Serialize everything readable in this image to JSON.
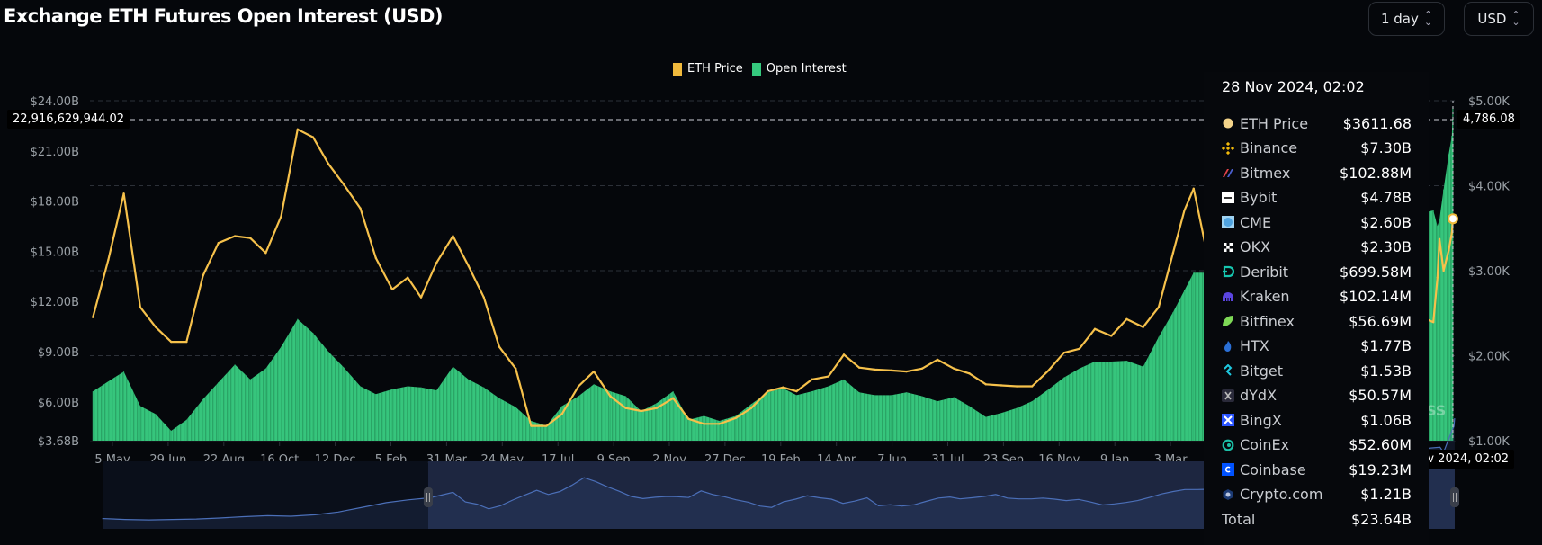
{
  "header": {
    "title": "Exchange ETH Futures Open Interest (USD)",
    "interval_select": "1 day",
    "currency_select": "USD"
  },
  "legend": [
    {
      "label": "ETH Price",
      "color": "#f0b93c"
    },
    {
      "label": "Open Interest",
      "color": "#35c97e"
    }
  ],
  "crosshair": {
    "left_value": "22,916,629,944.02",
    "right_value": "4,786.08",
    "date_label": "28 Nov 2024, 02:02"
  },
  "watermark": "SS",
  "tooltip": {
    "date": "28 Nov 2024, 02:02",
    "rows": [
      {
        "name": "ETH Price",
        "value": "$3611.68",
        "icon": "eth-price-dot-icon",
        "color": "#f3d48a"
      },
      {
        "name": "Binance",
        "value": "$7.30B",
        "icon": "binance-icon",
        "color": "#f0b90b"
      },
      {
        "name": "Bitmex",
        "value": "$102.88M",
        "icon": "bitmex-icon",
        "color": "#e2434a"
      },
      {
        "name": "Bybit",
        "value": "$4.78B",
        "icon": "bybit-icon",
        "color": "#ffffff"
      },
      {
        "name": "CME",
        "value": "$2.60B",
        "icon": "cme-icon",
        "color": "#4fa3e0"
      },
      {
        "name": "OKX",
        "value": "$2.30B",
        "icon": "okx-icon",
        "color": "#ffffff"
      },
      {
        "name": "Deribit",
        "value": "$699.58M",
        "icon": "deribit-icon",
        "color": "#16c6b0"
      },
      {
        "name": "Kraken",
        "value": "$102.14M",
        "icon": "kraken-icon",
        "color": "#5b45e0"
      },
      {
        "name": "Bitfinex",
        "value": "$56.69M",
        "icon": "bitfinex-icon",
        "color": "#7ed957"
      },
      {
        "name": "HTX",
        "value": "$1.77B",
        "icon": "htx-icon",
        "color": "#2a6fd6"
      },
      {
        "name": "Bitget",
        "value": "$1.53B",
        "icon": "bitget-icon",
        "color": "#1ec8e0"
      },
      {
        "name": "dYdX",
        "value": "$50.57M",
        "icon": "dydx-icon",
        "color": "#2a2a3a"
      },
      {
        "name": "BingX",
        "value": "$1.06B",
        "icon": "bingx-icon",
        "color": "#2a54ff"
      },
      {
        "name": "CoinEx",
        "value": "$52.60M",
        "icon": "coinex-icon",
        "color": "#1cc0a8"
      },
      {
        "name": "Coinbase",
        "value": "$19.23M",
        "icon": "coinbase-icon",
        "color": "#0052ff"
      },
      {
        "name": "Crypto.com",
        "value": "$1.21B",
        "icon": "cryptocom-icon",
        "color": "#1b3a74"
      },
      {
        "name": "Total",
        "value": "$23.64B",
        "icon": "",
        "color": ""
      }
    ]
  },
  "chart_data": {
    "type": "line+area",
    "title": "Exchange ETH Futures Open Interest (USD)",
    "left_axis": {
      "ticks": [
        "$24.00B",
        "$21.00B",
        "$18.00B",
        "$15.00B",
        "$12.00B",
        "$9.00B",
        "$6.00B",
        "$3.68B"
      ],
      "tick_values": [
        24,
        21,
        18,
        15,
        12,
        9,
        6,
        3.68
      ],
      "range": [
        3.68,
        24
      ],
      "unit": "USD billions"
    },
    "right_axis": {
      "ticks": [
        "$5.00K",
        "$4.00K",
        "$3.00K",
        "$2.00K",
        "$1.00K"
      ],
      "tick_values": [
        5000,
        4000,
        3000,
        2000,
        1000
      ],
      "range": [
        1000,
        5000
      ]
    },
    "x_ticks": [
      "5 May",
      "29 Jun",
      "22 Aug",
      "16 Oct",
      "12 Dec",
      "5 Feb",
      "31 Mar",
      "24 May",
      "17 Jul",
      "9 Sep",
      "2 Nov",
      "27 Dec",
      "19 Feb",
      "14 Apr",
      "7 Jun",
      "31 Jul",
      "23 Sep",
      "16 Nov",
      "9 Jan",
      "3 Mar"
    ],
    "grid": "horizontal dashed",
    "legend_position": "top-center",
    "series": [
      {
        "name": "ETH Price",
        "axis": "right",
        "color": "#f6c14b",
        "points": [
          [
            "2021-04-16",
            2453
          ],
          [
            "2021-05-01",
            3128
          ],
          [
            "2021-05-16",
            3907
          ],
          [
            "2021-06-01",
            2570
          ],
          [
            "2021-06-16",
            2337
          ],
          [
            "2021-07-01",
            2163
          ],
          [
            "2021-07-16",
            2163
          ],
          [
            "2021-08-01",
            2942
          ],
          [
            "2021-08-16",
            3326
          ],
          [
            "2021-09-01",
            3407
          ],
          [
            "2021-09-16",
            3384
          ],
          [
            "2021-10-01",
            3209
          ],
          [
            "2021-10-16",
            3640
          ],
          [
            "2021-11-01",
            4663
          ],
          [
            "2021-11-16",
            4570
          ],
          [
            "2021-12-01",
            4256
          ],
          [
            "2021-12-16",
            4012
          ],
          [
            "2022-01-01",
            3733
          ],
          [
            "2022-01-16",
            3151
          ],
          [
            "2022-02-01",
            2779
          ],
          [
            "2022-02-16",
            2919
          ],
          [
            "2022-03-01",
            2686
          ],
          [
            "2022-03-16",
            3093
          ],
          [
            "2022-04-01",
            3407
          ],
          [
            "2022-04-16",
            3058
          ],
          [
            "2022-05-01",
            2686
          ],
          [
            "2022-05-16",
            2105
          ],
          [
            "2022-06-01",
            1849
          ],
          [
            "2022-06-16",
            1174
          ],
          [
            "2022-07-01",
            1174
          ],
          [
            "2022-07-16",
            1314
          ],
          [
            "2022-08-01",
            1640
          ],
          [
            "2022-08-16",
            1814
          ],
          [
            "2022-09-01",
            1523
          ],
          [
            "2022-09-16",
            1384
          ],
          [
            "2022-10-01",
            1349
          ],
          [
            "2022-10-16",
            1384
          ],
          [
            "2022-11-01",
            1500
          ],
          [
            "2022-11-16",
            1256
          ],
          [
            "2022-12-01",
            1198
          ],
          [
            "2022-12-16",
            1198
          ],
          [
            "2023-01-01",
            1267
          ],
          [
            "2023-01-16",
            1384
          ],
          [
            "2023-02-01",
            1581
          ],
          [
            "2023-02-16",
            1628
          ],
          [
            "2023-03-01",
            1581
          ],
          [
            "2023-03-16",
            1721
          ],
          [
            "2023-04-01",
            1756
          ],
          [
            "2023-04-16",
            2012
          ],
          [
            "2023-05-01",
            1860
          ],
          [
            "2023-05-16",
            1837
          ],
          [
            "2023-06-01",
            1826
          ],
          [
            "2023-06-16",
            1814
          ],
          [
            "2023-07-01",
            1849
          ],
          [
            "2023-07-16",
            1953
          ],
          [
            "2023-08-01",
            1849
          ],
          [
            "2023-08-16",
            1791
          ],
          [
            "2023-09-01",
            1663
          ],
          [
            "2023-09-16",
            1651
          ],
          [
            "2023-10-01",
            1640
          ],
          [
            "2023-10-16",
            1640
          ],
          [
            "2023-11-01",
            1826
          ],
          [
            "2023-11-16",
            2035
          ],
          [
            "2023-12-01",
            2081
          ],
          [
            "2023-12-16",
            2314
          ],
          [
            "2024-01-01",
            2233
          ],
          [
            "2024-01-16",
            2430
          ],
          [
            "2024-02-01",
            2337
          ],
          [
            "2024-02-16",
            2570
          ],
          [
            "2024-03-01",
            3209
          ],
          [
            "2024-03-12",
            3709
          ],
          [
            "2024-03-21",
            3965
          ],
          [
            "2024-04-01",
            3326
          ],
          [
            "2024-04-08",
            3477
          ],
          [
            "2024-11-09",
            2395
          ],
          [
            "2024-11-13",
            2919
          ],
          [
            "2024-11-15",
            3372
          ],
          [
            "2024-11-19",
            3000
          ],
          [
            "2024-11-24",
            3240
          ],
          [
            "2024-11-27",
            3442
          ],
          [
            "2024-11-28",
            3611.68
          ]
        ]
      },
      {
        "name": "Open Interest",
        "axis": "left",
        "color": "#35c97e",
        "points": [
          [
            "2021-04-16",
            6.63
          ],
          [
            "2021-05-01",
            7.22
          ],
          [
            "2021-05-16",
            7.81
          ],
          [
            "2021-06-01",
            5.75
          ],
          [
            "2021-06-16",
            5.27
          ],
          [
            "2021-07-01",
            4.27
          ],
          [
            "2021-07-16",
            4.92
          ],
          [
            "2021-08-01",
            6.16
          ],
          [
            "2021-08-16",
            7.17
          ],
          [
            "2021-09-01",
            8.23
          ],
          [
            "2021-09-16",
            7.34
          ],
          [
            "2021-10-01",
            7.99
          ],
          [
            "2021-10-16",
            9.29
          ],
          [
            "2021-11-01",
            10.95
          ],
          [
            "2021-11-16",
            10.12
          ],
          [
            "2021-12-01",
            9.0
          ],
          [
            "2021-12-16",
            8.05
          ],
          [
            "2022-01-01",
            6.93
          ],
          [
            "2022-01-16",
            6.46
          ],
          [
            "2022-02-01",
            6.75
          ],
          [
            "2022-02-16",
            6.93
          ],
          [
            "2022-03-01",
            6.87
          ],
          [
            "2022-03-16",
            6.69
          ],
          [
            "2022-04-01",
            8.11
          ],
          [
            "2022-04-16",
            7.34
          ],
          [
            "2022-05-01",
            6.87
          ],
          [
            "2022-05-16",
            6.22
          ],
          [
            "2022-06-01",
            5.69
          ],
          [
            "2022-06-16",
            4.86
          ],
          [
            "2022-07-01",
            4.57
          ],
          [
            "2022-07-16",
            5.75
          ],
          [
            "2022-08-01",
            6.34
          ],
          [
            "2022-08-16",
            7.05
          ],
          [
            "2022-09-01",
            6.63
          ],
          [
            "2022-09-16",
            6.34
          ],
          [
            "2022-10-01",
            5.45
          ],
          [
            "2022-10-16",
            5.92
          ],
          [
            "2022-11-01",
            6.63
          ],
          [
            "2022-11-16",
            4.92
          ],
          [
            "2022-12-01",
            5.16
          ],
          [
            "2022-12-16",
            4.86
          ],
          [
            "2023-01-01",
            5.16
          ],
          [
            "2023-01-16",
            5.87
          ],
          [
            "2023-02-01",
            6.57
          ],
          [
            "2023-02-16",
            6.81
          ],
          [
            "2023-03-01",
            6.4
          ],
          [
            "2023-03-16",
            6.63
          ],
          [
            "2023-04-01",
            6.93
          ],
          [
            "2023-04-16",
            7.34
          ],
          [
            "2023-05-01",
            6.57
          ],
          [
            "2023-05-16",
            6.4
          ],
          [
            "2023-06-01",
            6.4
          ],
          [
            "2023-06-16",
            6.57
          ],
          [
            "2023-07-01",
            6.34
          ],
          [
            "2023-07-16",
            6.04
          ],
          [
            "2023-08-01",
            6.28
          ],
          [
            "2023-08-16",
            5.75
          ],
          [
            "2023-09-01",
            5.1
          ],
          [
            "2023-09-16",
            5.33
          ],
          [
            "2023-10-01",
            5.63
          ],
          [
            "2023-10-16",
            6.04
          ],
          [
            "2023-11-01",
            6.75
          ],
          [
            "2023-11-16",
            7.46
          ],
          [
            "2023-12-01",
            7.99
          ],
          [
            "2023-12-16",
            8.41
          ],
          [
            "2024-01-01",
            8.41
          ],
          [
            "2024-01-16",
            8.46
          ],
          [
            "2024-02-01",
            8.11
          ],
          [
            "2024-02-16",
            9.88
          ],
          [
            "2024-03-01",
            11.36
          ],
          [
            "2024-03-12",
            12.66
          ],
          [
            "2024-03-21",
            13.72
          ],
          [
            "2024-04-01",
            13.72
          ],
          [
            "2024-04-08",
            14.49
          ],
          [
            "2024-11-09",
            17.44
          ],
          [
            "2024-11-13",
            16.5
          ],
          [
            "2024-11-15",
            16.9
          ],
          [
            "2024-11-19",
            18.7
          ],
          [
            "2024-11-24",
            20.8
          ],
          [
            "2024-11-27",
            21.9
          ],
          [
            "2024-11-28",
            23.64
          ]
        ]
      }
    ],
    "navigator_history": [
      [
        "2020-02-19",
        2.2
      ],
      [
        "2020-03-19",
        2.0
      ],
      [
        "2020-04-19",
        1.9
      ],
      [
        "2020-05-19",
        2.0
      ],
      [
        "2020-06-19",
        2.1
      ],
      [
        "2020-07-19",
        2.3
      ],
      [
        "2020-08-19",
        2.6
      ],
      [
        "2020-09-19",
        2.8
      ],
      [
        "2020-10-19",
        2.7
      ],
      [
        "2020-11-19",
        3.0
      ],
      [
        "2020-12-19",
        3.6
      ],
      [
        "2021-01-19",
        4.6
      ],
      [
        "2021-02-19",
        5.6
      ],
      [
        "2021-03-19",
        6.2
      ]
    ]
  }
}
